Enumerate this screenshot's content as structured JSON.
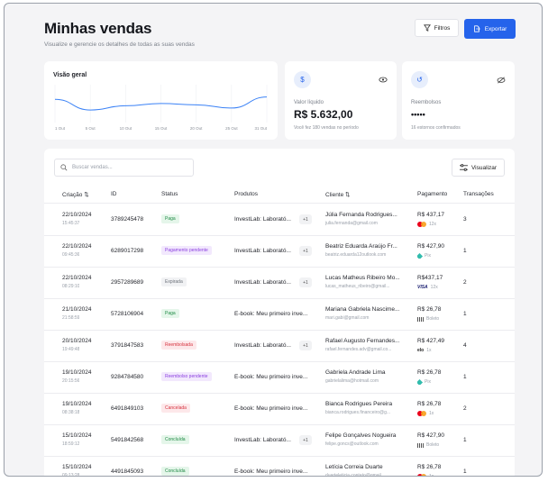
{
  "header": {
    "title": "Minhas vendas",
    "subtitle": "Visualize e gerencie os detalhes de todas as suas vendas",
    "filter_label": "Filtros",
    "export_label": "Exportar"
  },
  "overview": {
    "title": "Visão geral",
    "x_ticks": [
      "1 Out",
      "5 Out",
      "10 Out",
      "15 Out",
      "20 Out",
      "25 Out",
      "31 Out"
    ]
  },
  "chart_data": {
    "type": "line",
    "title": "Visão geral",
    "categories": [
      "1 Out",
      "5 Out",
      "10 Out",
      "15 Out",
      "20 Out",
      "25 Out",
      "31 Out"
    ],
    "values": [
      0.55,
      0.22,
      0.35,
      0.42,
      0.38,
      0.28,
      0.62
    ],
    "grid": true
  },
  "liquido": {
    "label": "Valor líquido",
    "value": "R$ 5.632,00",
    "note": "Você fez 180 vendas no período"
  },
  "reembolsos": {
    "label": "Reembolsos",
    "value": "•••••",
    "note": "16 estornos confirmados"
  },
  "table": {
    "search_placeholder": "Buscar vendas...",
    "view_label": "Visualizar",
    "headers": [
      "Criação ⇅",
      "ID",
      "Status",
      "Produtos",
      "Cliente ⇅",
      "Pagamento",
      "Transações"
    ],
    "rows": [
      {
        "date": "22/10/2024",
        "time": "15:45:37",
        "id": "3789245478",
        "status": "Paga",
        "product": "InvestLab: Laborató...",
        "more": "+1",
        "client": "Júlia Fernanda Rodrigues...",
        "email": "julia.fernanda@gmail.com",
        "amount": "R$ 437,17",
        "method": "12x",
        "transactions": "3"
      },
      {
        "date": "22/10/2024",
        "time": "09:45:36",
        "id": "6289017298",
        "status": "Pagamento pendente",
        "product": "InvestLab: Laborató...",
        "more": "+1",
        "client": "Beatriz Eduarda Araújo Fr...",
        "email": "beatriz.eduarda12outlook.com",
        "amount": "R$ 427,90",
        "method": "Pix",
        "transactions": "1"
      },
      {
        "date": "22/10/2024",
        "time": "08:29:10",
        "id": "2957289689",
        "status": "Expirada",
        "product": "InvestLab: Laborató...",
        "more": "+1",
        "client": "Lucas Matheus Ribeiro Mo...",
        "email": "lucas_matheus_ribeiro@gmail...",
        "amount": "R$437,17",
        "method": "12x",
        "transactions": "2"
      },
      {
        "date": "21/10/2024",
        "time": "21:58:59",
        "id": "5728106904",
        "status": "Paga",
        "product": "E-book: Meu primeiro inve...",
        "more": "",
        "client": "Mariana Gabriela Nascime...",
        "email": "mari.gabi@gmail.com",
        "amount": "R$ 26,78",
        "method": "Boleto",
        "transactions": "1"
      },
      {
        "date": "20/10/2024",
        "time": "19:49:48",
        "id": "3791847583",
        "status": "Reembolsada",
        "product": "InvestLab: Laborató...",
        "more": "+1",
        "client": "Rafael Augusto Fernandes...",
        "email": "rafael.fernandes.adv@gmail.co...",
        "amount": "R$ 427,49",
        "method": "1x",
        "transactions": "4"
      },
      {
        "date": "19/10/2024",
        "time": "20:15:56",
        "id": "9284784580",
        "status": "Reembolso pendente",
        "product": "E-book: Meu primeiro inve...",
        "more": "",
        "client": "Gabriela Andrade Lima",
        "email": "gabrielalima@hotmail.com",
        "amount": "R$ 26,78",
        "method": "Pix",
        "transactions": "1"
      },
      {
        "date": "19/10/2024",
        "time": "08:38:18",
        "id": "6491849103",
        "status": "Cancelada",
        "product": "E-book: Meu primeiro inve...",
        "more": "",
        "client": "Bianca Rodrigues Pereira",
        "email": "bianca.rodrigues.financeiro@g...",
        "amount": "R$ 26,78",
        "method": "1x",
        "transactions": "2"
      },
      {
        "date": "15/10/2024",
        "time": "18:59:12",
        "id": "5491842568",
        "status": "Concluída",
        "product": "InvestLab: Laborató...",
        "more": "+1",
        "client": "Felipe Gonçalves Nogueira",
        "email": "felipe.goncs@outlook.com",
        "amount": "R$ 427,90",
        "method": "Boleto",
        "transactions": "1"
      },
      {
        "date": "15/10/2024",
        "time": "09:13:28",
        "id": "4491845093",
        "status": "Concluída",
        "product": "E-book: Meu primeiro inve...",
        "more": "",
        "client": "Letícia Correia Duarte",
        "email": "duarteleticia.contato@gmail...",
        "amount": "R$ 26,78",
        "method": "1x",
        "transactions": "1"
      }
    ]
  },
  "colors": {
    "accent": "#2563eb",
    "paid": "#1f8a45",
    "pending": "#8b3fe0",
    "refunded": "#d6333f"
  }
}
